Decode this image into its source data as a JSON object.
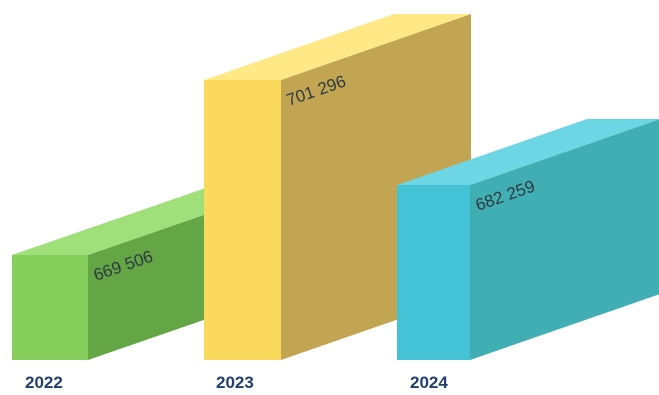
{
  "chart_data": {
    "type": "bar",
    "categories": [
      "2022",
      "2023",
      "2024"
    ],
    "values": [
      669506,
      701296,
      682259
    ],
    "value_labels": [
      "669 506",
      "701 296",
      "682 259"
    ],
    "title": "",
    "xlabel": "",
    "ylabel": "",
    "style": "3d-extruded-bars",
    "grid": false,
    "legend": "none",
    "colors": {
      "2022": {
        "front": "#86cf5d",
        "side": "#64a646",
        "top": "#9fe07a"
      },
      "2023": {
        "front": "#fbd95d",
        "side": "#c2a552",
        "top": "#ffe886"
      },
      "2024": {
        "front": "#45c3d6",
        "side": "#41aeb4",
        "top": "#6cd6e4"
      }
    }
  }
}
